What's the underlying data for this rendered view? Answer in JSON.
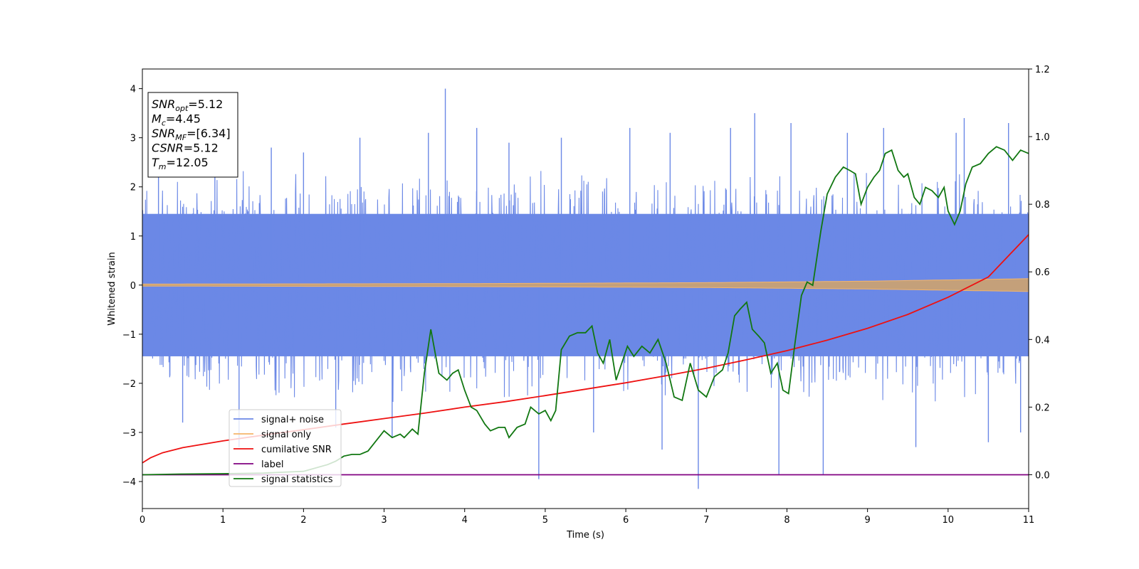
{
  "chart_data": {
    "type": "line",
    "xlabel": "Time (s)",
    "ylabel": "Whitened strain",
    "xlim": [
      0,
      11
    ],
    "ylim_left": [
      -4.55,
      4.4
    ],
    "ylim_right": [
      -0.1,
      1.2
    ],
    "xticks": [
      "0",
      "1",
      "2",
      "3",
      "4",
      "5",
      "6",
      "7",
      "8",
      "9",
      "10",
      "11"
    ],
    "yticks_left": [
      "4",
      "3",
      "2",
      "1",
      "0",
      "−1",
      "−2",
      "−3",
      "−4"
    ],
    "yticks_left_values": [
      4,
      3,
      2,
      1,
      0,
      -1,
      -2,
      -3,
      -4
    ],
    "yticks_right": [
      "1.2",
      "1.0",
      "0.8",
      "0.6",
      "0.4",
      "0.2",
      "0.0"
    ],
    "yticks_right_values": [
      1.2,
      1.0,
      0.8,
      0.6,
      0.4,
      0.2,
      0.0
    ],
    "grid": false,
    "legend_placement": "lower-left",
    "legend": [
      "signal+ noise",
      "signal only",
      "cumilative SNR",
      "label",
      "signal statistics"
    ],
    "colors": {
      "signal_noise": "#6b88e6",
      "signal_only": "#f5b56a",
      "signal_band": "#c4a07a",
      "cumulative_snr": "#ee1111",
      "label": "#800080",
      "signal_statistics": "#117711"
    },
    "annotation_box": [
      {
        "main": "SNR",
        "sub": "opt",
        "rest": "=5.12"
      },
      {
        "main": "M",
        "sub": "c",
        "rest": "=4.45"
      },
      {
        "main": "SNR",
        "sub": "MF",
        "rest": "=[6.34]"
      },
      {
        "main": "CSNR",
        "sub": "",
        "rest": "=5.12"
      },
      {
        "main": "T",
        "sub": "m",
        "rest": "=12.05"
      }
    ],
    "series": [
      {
        "name": "signal+ noise",
        "axis": "left",
        "description_free": true,
        "envelope_typical": 1.8,
        "spikes": [
          [
            0.2,
            2.9
          ],
          [
            0.5,
            -2.8
          ],
          [
            0.9,
            2.5
          ],
          [
            1.2,
            -3.3
          ],
          [
            1.6,
            2.8
          ],
          [
            2.0,
            2.7
          ],
          [
            2.4,
            -2.9
          ],
          [
            2.7,
            3.0
          ],
          [
            3.1,
            -3.1
          ],
          [
            3.55,
            3.1
          ],
          [
            3.76,
            4.0
          ],
          [
            4.15,
            3.2
          ],
          [
            4.55,
            2.9
          ],
          [
            4.92,
            -3.95
          ],
          [
            5.2,
            3.0
          ],
          [
            5.6,
            -3.0
          ],
          [
            6.05,
            3.2
          ],
          [
            6.45,
            -3.35
          ],
          [
            6.55,
            3.1
          ],
          [
            6.9,
            -4.15
          ],
          [
            7.3,
            3.2
          ],
          [
            7.6,
            3.5
          ],
          [
            7.9,
            -3.85
          ],
          [
            8.05,
            3.3
          ],
          [
            8.45,
            -3.85
          ],
          [
            8.75,
            3.1
          ],
          [
            9.2,
            3.2
          ],
          [
            9.6,
            -3.3
          ],
          [
            10.1,
            3.1
          ],
          [
            10.2,
            3.4
          ],
          [
            10.5,
            -3.2
          ],
          [
            10.75,
            3.3
          ],
          [
            10.9,
            -3.0
          ]
        ]
      },
      {
        "name": "signal only",
        "axis": "left",
        "amplitude": [
          [
            0,
            0.02
          ],
          [
            4,
            0.03
          ],
          [
            7,
            0.05
          ],
          [
            9,
            0.08
          ],
          [
            11,
            0.13
          ]
        ]
      },
      {
        "name": "cumilative SNR",
        "axis": "right",
        "x": [
          0,
          0.1,
          0.25,
          0.5,
          1,
          1.5,
          2,
          2.5,
          3,
          3.5,
          4,
          4.5,
          5,
          5.5,
          6,
          6.5,
          7,
          7.5,
          8,
          8.5,
          9,
          9.5,
          10,
          10.5,
          11
        ],
        "y": [
          0.035,
          0.05,
          0.065,
          0.08,
          0.1,
          0.117,
          0.133,
          0.15,
          0.166,
          0.182,
          0.2,
          0.216,
          0.234,
          0.253,
          0.272,
          0.293,
          0.315,
          0.34,
          0.367,
          0.398,
          0.433,
          0.474,
          0.525,
          0.585,
          0.71
        ]
      },
      {
        "name": "label",
        "axis": "right",
        "x": [
          0,
          11
        ],
        "y": [
          0,
          0
        ]
      },
      {
        "name": "signal statistics",
        "axis": "right",
        "x": [
          0,
          0.5,
          1,
          1.5,
          2,
          2.3,
          2.4,
          2.5,
          2.6,
          2.7,
          2.8,
          2.9,
          3.0,
          3.1,
          3.2,
          3.25,
          3.35,
          3.42,
          3.5,
          3.58,
          3.68,
          3.78,
          3.85,
          3.92,
          4.0,
          4.08,
          4.15,
          4.25,
          4.32,
          4.42,
          4.5,
          4.55,
          4.65,
          4.75,
          4.82,
          4.92,
          5.0,
          5.07,
          5.13,
          5.2,
          5.3,
          5.4,
          5.5,
          5.58,
          5.65,
          5.72,
          5.8,
          5.88,
          5.95,
          6.02,
          6.1,
          6.2,
          6.3,
          6.4,
          6.5,
          6.6,
          6.7,
          6.8,
          6.9,
          7.0,
          7.1,
          7.2,
          7.27,
          7.35,
          7.42,
          7.5,
          7.57,
          7.65,
          7.72,
          7.8,
          7.88,
          7.95,
          8.02,
          8.1,
          8.18,
          8.25,
          8.32,
          8.42,
          8.5,
          8.6,
          8.7,
          8.78,
          8.85,
          8.92,
          9.0,
          9.08,
          9.15,
          9.22,
          9.3,
          9.38,
          9.45,
          9.5,
          9.58,
          9.65,
          9.72,
          9.8,
          9.88,
          9.95,
          10.0,
          10.08,
          10.15,
          10.22,
          10.3,
          10.4,
          10.5,
          10.6,
          10.7,
          10.8,
          10.9,
          11.0
        ],
        "y": [
          0.0,
          0.002,
          0.003,
          0.005,
          0.01,
          0.03,
          0.04,
          0.055,
          0.06,
          0.06,
          0.07,
          0.1,
          0.13,
          0.11,
          0.12,
          0.11,
          0.135,
          0.12,
          0.3,
          0.43,
          0.3,
          0.28,
          0.3,
          0.31,
          0.25,
          0.2,
          0.19,
          0.15,
          0.13,
          0.14,
          0.14,
          0.11,
          0.14,
          0.15,
          0.2,
          0.18,
          0.19,
          0.16,
          0.19,
          0.37,
          0.41,
          0.42,
          0.42,
          0.44,
          0.36,
          0.33,
          0.4,
          0.28,
          0.33,
          0.38,
          0.35,
          0.38,
          0.36,
          0.4,
          0.33,
          0.23,
          0.22,
          0.33,
          0.25,
          0.23,
          0.29,
          0.31,
          0.36,
          0.47,
          0.49,
          0.51,
          0.43,
          0.41,
          0.39,
          0.3,
          0.33,
          0.25,
          0.24,
          0.39,
          0.53,
          0.57,
          0.56,
          0.72,
          0.83,
          0.88,
          0.91,
          0.9,
          0.89,
          0.8,
          0.85,
          0.88,
          0.9,
          0.95,
          0.96,
          0.9,
          0.88,
          0.89,
          0.82,
          0.8,
          0.85,
          0.84,
          0.82,
          0.85,
          0.78,
          0.74,
          0.78,
          0.86,
          0.91,
          0.92,
          0.95,
          0.97,
          0.96,
          0.93,
          0.96,
          0.95
        ]
      }
    ]
  }
}
